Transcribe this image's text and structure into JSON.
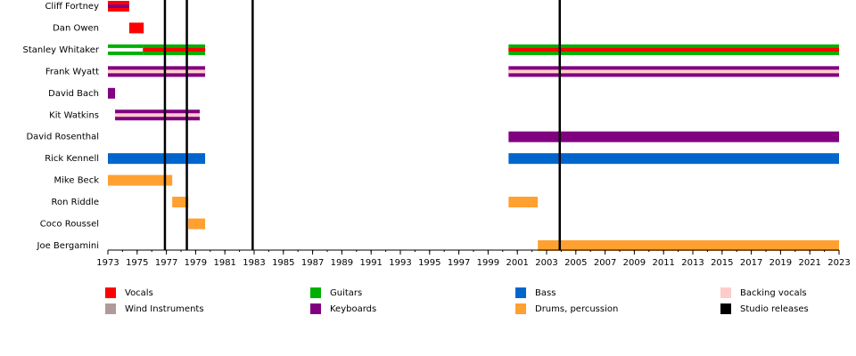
{
  "chart_data": {
    "type": "timeline",
    "members": [
      {
        "name": "Cliff Fortney",
        "periods": [
          {
            "start": 1973,
            "end": 1974.46,
            "color": "#ff0000",
            "stripe": "#800080"
          }
        ]
      },
      {
        "name": "Dan Owen",
        "periods": [
          {
            "start": 1974.46,
            "end": 1975.45,
            "color": "#ff0000"
          }
        ]
      },
      {
        "name": "Stanley Whitaker",
        "periods": [
          {
            "start": 1973,
            "end": 1975.4,
            "color": "#00b000",
            "stripe": "#ffffff"
          },
          {
            "start": 1975.4,
            "end": 1979.65,
            "color": "#00b000",
            "stripe": "#ff0000"
          },
          {
            "start": 2000.4,
            "end": 2023,
            "color": "#00b000",
            "stripe": "#ff0000"
          }
        ]
      },
      {
        "name": "Frank Wyatt",
        "periods": [
          {
            "start": 1973,
            "end": 1979.65,
            "color": "#800080",
            "stripe": "#ffcccc"
          },
          {
            "start": 2000.4,
            "end": 2023,
            "color": "#800080",
            "stripe": "#ffcccc"
          }
        ]
      },
      {
        "name": "David Bach",
        "periods": [
          {
            "start": 1973,
            "end": 1973.49,
            "color": "#800080"
          }
        ]
      },
      {
        "name": "Kit Watkins",
        "periods": [
          {
            "start": 1973.49,
            "end": 1979.28,
            "color": "#800080",
            "stripe": "#ffcccc"
          }
        ]
      },
      {
        "name": "David Rosenthal",
        "periods": [
          {
            "start": 2000.4,
            "end": 2023,
            "color": "#800080"
          }
        ]
      },
      {
        "name": "Rick Kennell",
        "periods": [
          {
            "start": 1973,
            "end": 1979.65,
            "color": "#0066cc"
          },
          {
            "start": 2000.4,
            "end": 2023,
            "color": "#0066cc"
          }
        ]
      },
      {
        "name": "Mike Beck",
        "periods": [
          {
            "start": 1973,
            "end": 1977.4,
            "color": "#ffa030"
          }
        ]
      },
      {
        "name": "Ron Riddle",
        "periods": [
          {
            "start": 1977.4,
            "end": 1978.5,
            "color": "#ffa030"
          },
          {
            "start": 2000.4,
            "end": 2002.4,
            "color": "#ffa030"
          }
        ]
      },
      {
        "name": "Coco Roussel",
        "periods": [
          {
            "start": 1978.5,
            "end": 1979.65,
            "color": "#ffa030"
          }
        ]
      },
      {
        "name": "Joe Bergamini",
        "periods": [
          {
            "start": 2002.4,
            "end": 2023,
            "color": "#ffa030"
          }
        ]
      }
    ],
    "releases": [
      1976.9,
      1978.4,
      1982.9,
      2003.9
    ],
    "release_color": "#000000",
    "xlim": [
      1973,
      2023
    ],
    "xticks": [
      1973,
      1975,
      1977,
      1979,
      1981,
      1983,
      1985,
      1987,
      1989,
      1991,
      1993,
      1995,
      1997,
      1999,
      2001,
      2003,
      2005,
      2007,
      2009,
      2011,
      2013,
      2015,
      2017,
      2019,
      2021,
      2023
    ],
    "legend": [
      {
        "name": "Vocals",
        "color": "#ff0000"
      },
      {
        "name": "Wind Instruments",
        "color": "#b09a9a"
      },
      {
        "name": "Guitars",
        "color": "#00b000"
      },
      {
        "name": "Keyboards",
        "color": "#800080"
      },
      {
        "name": "Bass",
        "color": "#0066cc"
      },
      {
        "name": "Drums, percussion",
        "color": "#ffa030"
      },
      {
        "name": "Backing vocals",
        "color": "#ffcccc"
      },
      {
        "name": "Studio releases",
        "color": "#000000"
      }
    ]
  }
}
